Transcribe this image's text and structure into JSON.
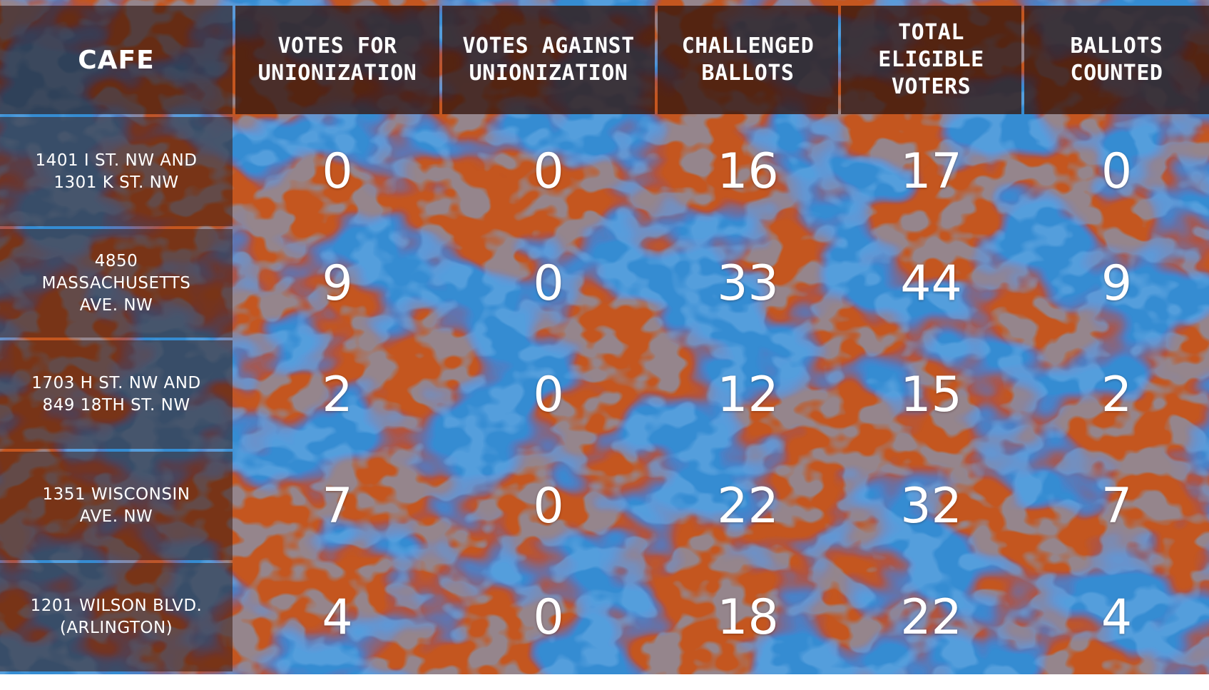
{
  "chart_data": {
    "type": "table",
    "columns": [
      "CAFE",
      "VOTES FOR\nUNIONIZATION",
      "VOTES AGAINST\nUNIONIZATION",
      "CHALLENGED\nBALLOTS",
      "TOTAL\nELIGIBLE\nVOTERS",
      "BALLOTS\nCOUNTED"
    ],
    "rows": [
      {
        "cafe": "1401 I ST. NW AND\n1301 K ST. NW",
        "values": [
          0,
          0,
          16,
          17,
          0
        ]
      },
      {
        "cafe": "4850\nMASSACHUSETTS\nAVE. NW",
        "values": [
          9,
          0,
          33,
          44,
          9
        ]
      },
      {
        "cafe": "1703 H ST. NW AND\n849 18TH ST. NW",
        "values": [
          2,
          0,
          12,
          15,
          2
        ]
      },
      {
        "cafe": "1351 WISCONSIN\nAVE. NW",
        "values": [
          7,
          0,
          22,
          32,
          7
        ]
      },
      {
        "cafe": "1201 WILSON BLVD.\n(ARLINGTON)",
        "values": [
          4,
          0,
          18,
          22,
          4
        ]
      }
    ],
    "colors": {
      "orange": "#c4561f",
      "blue": "#2f8fdc",
      "violet": "#6b4fb8",
      "dark_brown": "#3a1a10",
      "grid_line": "#ffffff",
      "text": "#ffffff"
    }
  }
}
